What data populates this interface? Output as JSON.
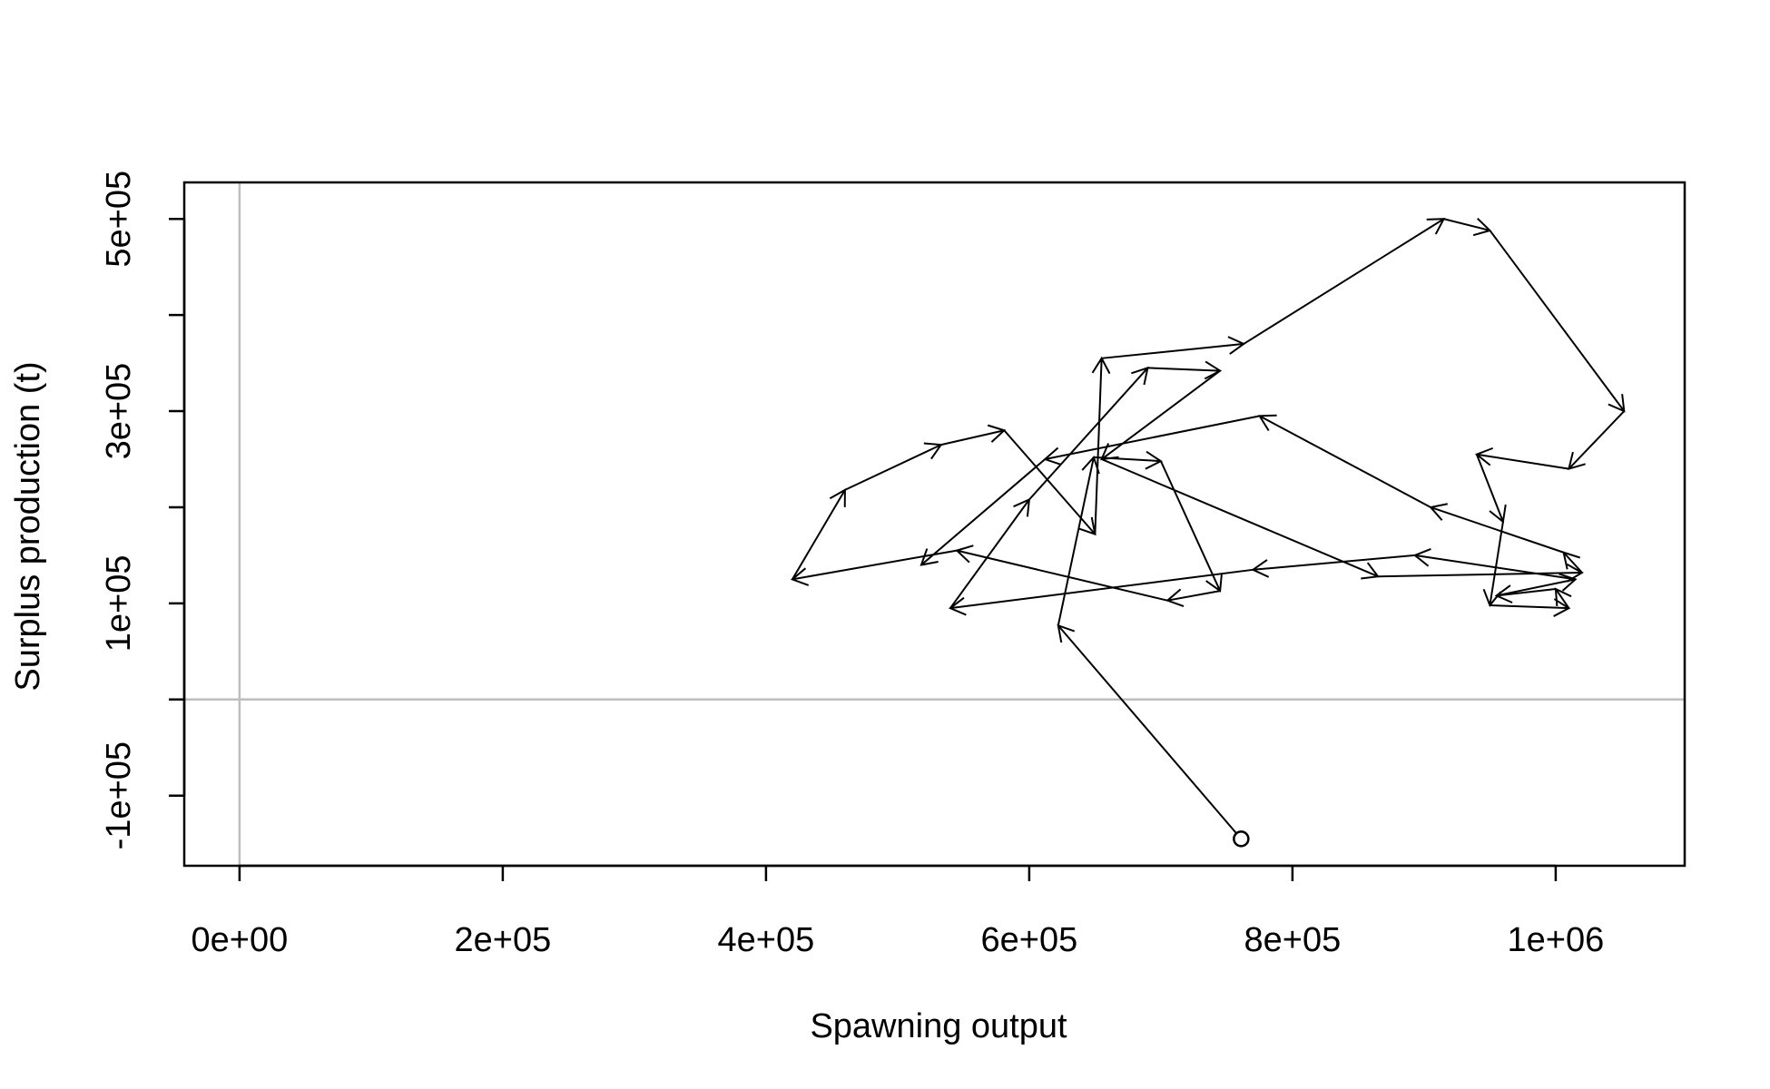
{
  "chart_data": {
    "type": "line",
    "title": "",
    "xlabel": "Spawning output",
    "ylabel": "Surplus production (t)",
    "xlim": [
      -42000,
      1098000
    ],
    "ylim": [
      -173000,
      538000
    ],
    "x_ticks": [
      0,
      200000,
      400000,
      600000,
      800000,
      1000000
    ],
    "x_tick_labels": [
      "0e+00",
      "2e+05",
      "4e+05",
      "6e+05",
      "8e+05",
      "1e+06"
    ],
    "y_ticks": [
      -100000,
      0,
      100000,
      200000,
      300000,
      400000,
      500000
    ],
    "y_tick_labels": [
      "-1e+05",
      "",
      "1e+05",
      "",
      "3e+05",
      "",
      "5e+05"
    ],
    "reference_lines": {
      "x": 0,
      "y": 0,
      "color": "#bebebe"
    },
    "grid": false,
    "legend": "none",
    "start_marker": "open-circle",
    "line_color": "#000000",
    "series": [
      {
        "x": [
          761000,
          622000,
          649000,
          700000,
          745000,
          705000,
          545000,
          420000,
          460000,
          533000,
          581000,
          650000,
          655000,
          763000,
          915000,
          950000,
          1052000,
          1010000,
          940000,
          960000,
          950000,
          1010000,
          1000000,
          955000,
          1015000,
          893000,
          770000,
          540000,
          600000,
          690000,
          745000,
          655000,
          865000,
          1020000,
          1006000,
          905000,
          775000,
          612000,
          518000
        ],
        "y": [
          -145000,
          77000,
          252000,
          248000,
          113000,
          103000,
          155000,
          125000,
          218000,
          265000,
          280000,
          172000,
          355000,
          370000,
          500000,
          488000,
          300000,
          240000,
          255000,
          185000,
          98000,
          95000,
          115000,
          108000,
          125000,
          150000,
          135000,
          95000,
          208000,
          345000,
          342000,
          250000,
          128000,
          132000,
          153000,
          200000,
          295000,
          250000,
          140000
        ]
      }
    ]
  }
}
